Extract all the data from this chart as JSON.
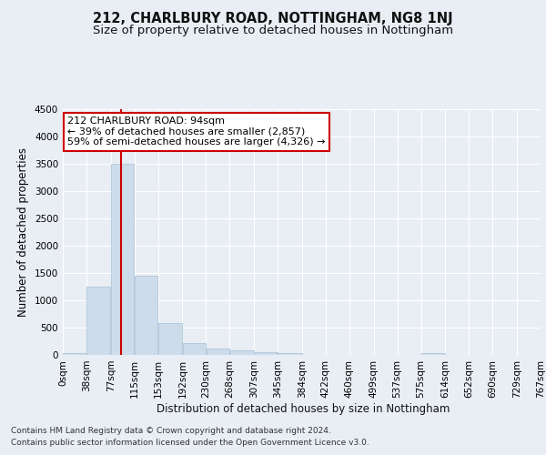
{
  "title": "212, CHARLBURY ROAD, NOTTINGHAM, NG8 1NJ",
  "subtitle": "Size of property relative to detached houses in Nottingham",
  "xlabel": "Distribution of detached houses by size in Nottingham",
  "ylabel": "Number of detached properties",
  "annotation_title": "212 CHARLBURY ROAD: 94sqm",
  "annotation_line1": "← 39% of detached houses are smaller (2,857)",
  "annotation_line2": "59% of semi-detached houses are larger (4,326) →",
  "footer_line1": "Contains HM Land Registry data © Crown copyright and database right 2024.",
  "footer_line2": "Contains public sector information licensed under the Open Government Licence v3.0.",
  "bar_edges": [
    0,
    38,
    77,
    115,
    153,
    192,
    230,
    268,
    307,
    345,
    384,
    422,
    460,
    499,
    537,
    575,
    614,
    652,
    690,
    729,
    767
  ],
  "bar_heights": [
    30,
    1250,
    3500,
    1450,
    580,
    220,
    110,
    80,
    50,
    40,
    5,
    5,
    0,
    0,
    0,
    30,
    0,
    0,
    0,
    0
  ],
  "bar_color": "#cddceb",
  "bar_edge_color": "#a8c0d4",
  "vline_x": 94,
  "vline_color": "#cc0000",
  "ylim": [
    0,
    4500
  ],
  "yticks": [
    0,
    500,
    1000,
    1500,
    2000,
    2500,
    3000,
    3500,
    4000,
    4500
  ],
  "bg_color": "#e8eef4",
  "plot_bg_color": "#e8eef4",
  "grid_color": "#ffffff",
  "annotation_box_bg": "#ffffff",
  "annotation_box_edge": "#cc0000",
  "title_fontsize": 10.5,
  "subtitle_fontsize": 9.5,
  "axis_label_fontsize": 8.5,
  "tick_fontsize": 7.5,
  "annotation_fontsize": 8,
  "footer_fontsize": 6.5
}
